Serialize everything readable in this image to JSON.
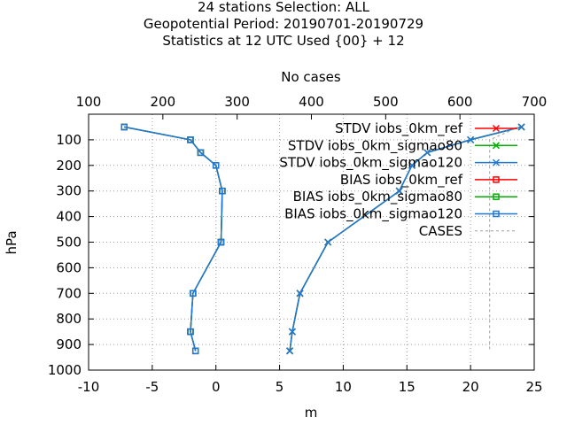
{
  "header": {
    "title_lines": [
      "24 stations Selection: ALL",
      "Geopotential  Period: 20190701-20190729",
      "Statistics at 12 UTC  Used {00} + 12"
    ]
  },
  "chart_data": {
    "type": "line",
    "xlabel": "m",
    "ylabel": "hPa",
    "x2label": "No cases",
    "xlim": [
      -10,
      25
    ],
    "ylim": [
      1000,
      0
    ],
    "x2lim": [
      100,
      700
    ],
    "xticks": [
      "-10",
      "-5",
      "0",
      "5",
      "10",
      "15",
      "20",
      "25"
    ],
    "yticks": [
      "100",
      "200",
      "300",
      "400",
      "500",
      "600",
      "700",
      "800",
      "900",
      "1000"
    ],
    "x2ticks": [
      "100",
      "200",
      "300",
      "400",
      "500",
      "600",
      "700"
    ],
    "grid": true,
    "legend_position": "top-right",
    "levels": [
      50,
      100,
      150,
      200,
      300,
      500,
      700,
      850,
      925
    ],
    "series": [
      {
        "name": "STDV iobs_0km_ref",
        "color": "#ff0000",
        "marker": "x",
        "values": [
          24.0,
          20.0,
          16.6,
          15.4,
          14.4,
          8.8,
          6.6,
          6.0,
          5.8
        ]
      },
      {
        "name": "STDV iobs_0km_sigmao80",
        "color": "#00b000",
        "marker": "x",
        "values": [
          24.0,
          20.0,
          16.6,
          15.4,
          14.4,
          8.8,
          6.6,
          6.0,
          5.8
        ]
      },
      {
        "name": "STDV iobs_0km_sigmao120",
        "color": "#1f78d8",
        "marker": "x",
        "values": [
          24.0,
          20.0,
          16.6,
          15.4,
          14.4,
          8.8,
          6.6,
          6.0,
          5.8
        ]
      },
      {
        "name": "BIAS iobs_0km_ref",
        "color": "#ff0000",
        "marker": "square",
        "values": [
          -7.2,
          -2.0,
          -1.2,
          0.0,
          0.5,
          0.4,
          -1.8,
          -2.0,
          -1.6
        ]
      },
      {
        "name": "BIAS iobs_0km_sigmao80",
        "color": "#00b000",
        "marker": "square",
        "values": [
          -7.2,
          -2.0,
          -1.2,
          0.0,
          0.5,
          0.4,
          -1.8,
          -2.0,
          -1.6
        ]
      },
      {
        "name": "BIAS iobs_0km_sigmao120",
        "color": "#1f78d8",
        "marker": "square",
        "values": [
          -7.2,
          -2.0,
          -1.2,
          0.0,
          0.5,
          0.4,
          -1.8,
          -2.0,
          -1.6
        ]
      },
      {
        "name": "CASES",
        "color": "#a0a0a0",
        "marker": "none",
        "dashed": true,
        "values": [
          680,
          640,
          640,
          640,
          640,
          640,
          640,
          640,
          640
        ]
      }
    ]
  }
}
